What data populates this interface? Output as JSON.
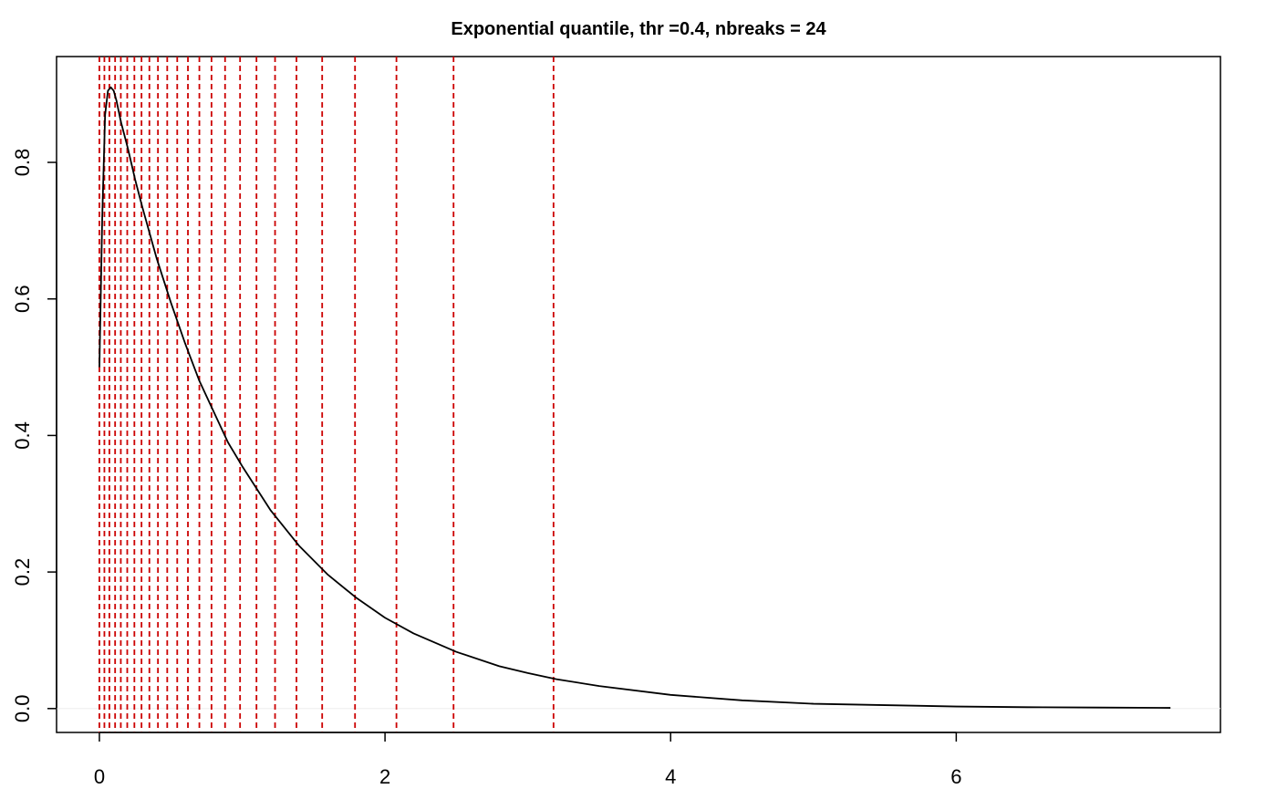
{
  "chart_data": {
    "type": "line",
    "title": "Exponential quantile, thr =0.4, nbreaks = 24",
    "xlabel": "",
    "ylabel": "",
    "xlim": [
      -0.3,
      7.85
    ],
    "ylim": [
      -0.035,
      0.955
    ],
    "x_ticks": [
      0,
      2,
      4,
      6
    ],
    "x_tick_labels": [
      "0",
      "2",
      "4",
      "6"
    ],
    "y_ticks": [
      0.0,
      0.2,
      0.4,
      0.6,
      0.8
    ],
    "y_tick_labels": [
      "0.0",
      "0.2",
      "0.4",
      "0.6",
      "0.8"
    ],
    "grid": false,
    "legend": "none",
    "series": [
      {
        "color": "#000000",
        "x": [
          0.0,
          0.02,
          0.04,
          0.06,
          0.08,
          0.1,
          0.12,
          0.15,
          0.2,
          0.25,
          0.3,
          0.4,
          0.5,
          0.6,
          0.7,
          0.8,
          0.9,
          1.0,
          1.2,
          1.4,
          1.6,
          1.8,
          2.0,
          2.2,
          2.5,
          2.8,
          3.0,
          3.2,
          3.5,
          4.0,
          4.5,
          5.0,
          5.5,
          6.0,
          6.5,
          7.0,
          7.5
        ],
        "y": [
          0.5,
          0.72,
          0.87,
          0.905,
          0.91,
          0.905,
          0.89,
          0.86,
          0.82,
          0.775,
          0.735,
          0.66,
          0.595,
          0.535,
          0.48,
          0.435,
          0.39,
          0.355,
          0.29,
          0.238,
          0.196,
          0.162,
          0.133,
          0.11,
          0.083,
          0.062,
          0.052,
          0.043,
          0.033,
          0.02,
          0.012,
          0.007,
          0.005,
          0.003,
          0.002,
          0.0015,
          0.001
        ]
      }
    ],
    "vlines": {
      "color": "#cc0000",
      "style": "dashed",
      "x": [
        0.0,
        0.035,
        0.07,
        0.11,
        0.15,
        0.195,
        0.245,
        0.295,
        0.35,
        0.41,
        0.475,
        0.545,
        0.62,
        0.7,
        0.785,
        0.88,
        0.985,
        1.1,
        1.23,
        1.38,
        1.56,
        1.79,
        2.08,
        2.48,
        3.18
      ]
    },
    "hline": {
      "y": 0.0,
      "color": "#eeeeee"
    }
  }
}
